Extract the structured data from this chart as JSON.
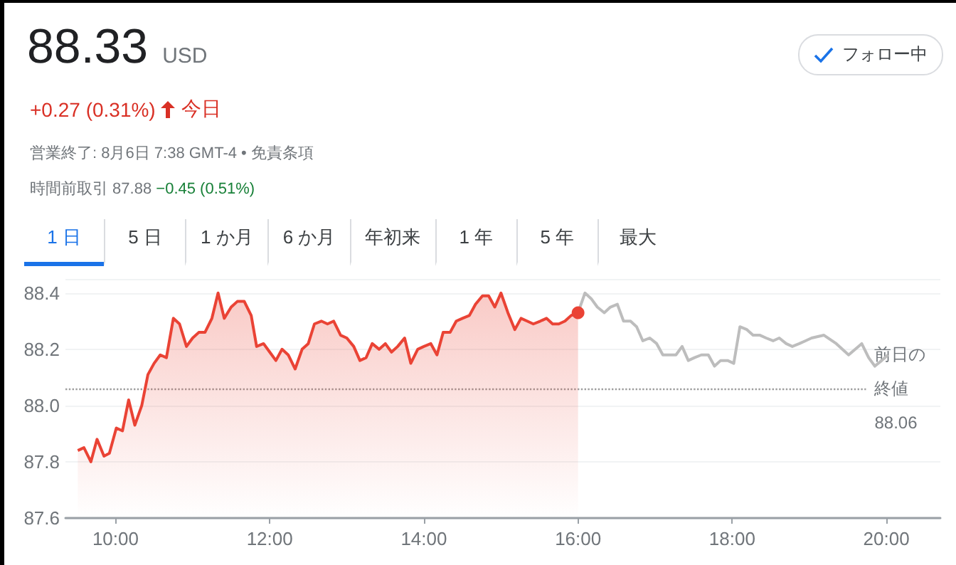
{
  "chart_data": {
    "type": "area",
    "title": "88.33",
    "subtitle": "USD",
    "annotations": [
      "+0.27 (0.31%)",
      "今日",
      "営業終了: 8月6日 7:38 GMT-4 • 免責条項",
      "時間前取引 87.88",
      "−0.45 (0.51%)",
      "フォロー中",
      "1 日",
      "5 日",
      "1 か月",
      "6 か月",
      "年初来",
      "1 年",
      "5 年",
      "最大"
    ],
    "series": [
      {
        "color": "#ea4335",
        "x": [
          9.51,
          9.59,
          9.68,
          9.76,
          9.85,
          9.92,
          10.01,
          10.09,
          10.17,
          10.25,
          10.34,
          10.42,
          10.5,
          10.58,
          10.66,
          10.75,
          10.83,
          10.92,
          11.0,
          11.08,
          11.16,
          11.25,
          11.33,
          11.41,
          11.5,
          11.58,
          11.67,
          11.76,
          11.83,
          11.92,
          12.0,
          12.08,
          12.16,
          12.24,
          12.33,
          12.42,
          12.5,
          12.58,
          12.67,
          12.75,
          12.83,
          12.92,
          13.0,
          13.09,
          13.17,
          13.25,
          13.33,
          13.42,
          13.5,
          13.58,
          13.66,
          13.75,
          13.83,
          13.92,
          14.0,
          14.09,
          14.17,
          14.25,
          14.34,
          14.42,
          14.5,
          14.59,
          14.67,
          14.76,
          14.84,
          14.92,
          15.0,
          15.09,
          15.18,
          15.26,
          15.34,
          15.42,
          15.51,
          15.59,
          15.67,
          15.75,
          15.83,
          15.91,
          16.0
        ],
        "values": [
          87.84,
          87.85,
          87.8,
          87.88,
          87.82,
          87.83,
          87.92,
          87.91,
          88.02,
          87.93,
          88.0,
          88.11,
          88.15,
          88.18,
          88.17,
          88.31,
          88.29,
          88.21,
          88.24,
          88.26,
          88.26,
          88.31,
          88.4,
          88.31,
          88.35,
          88.37,
          88.37,
          88.32,
          88.21,
          88.22,
          88.19,
          88.16,
          88.2,
          88.18,
          88.13,
          88.2,
          88.22,
          88.29,
          88.3,
          88.29,
          88.3,
          88.25,
          88.24,
          88.21,
          88.16,
          88.17,
          88.22,
          88.2,
          88.22,
          88.19,
          88.21,
          88.24,
          88.15,
          88.2,
          88.21,
          88.22,
          88.18,
          88.26,
          88.26,
          88.3,
          88.31,
          88.32,
          88.36,
          88.39,
          88.39,
          88.35,
          88.4,
          88.33,
          88.27,
          88.31,
          88.3,
          88.29,
          88.3,
          88.31,
          88.29,
          88.29,
          88.3,
          88.32,
          88.33
        ]
      },
      {
        "type": "line",
        "color": "#bdbdbd",
        "x": [
          16.0,
          16.09,
          16.17,
          16.25,
          16.34,
          16.42,
          16.51,
          16.59,
          16.68,
          16.76,
          16.84,
          16.93,
          17.02,
          17.1,
          17.18,
          17.27,
          17.35,
          17.43,
          17.51,
          17.6,
          17.69,
          17.77,
          17.85,
          17.94,
          18.02,
          18.1,
          18.19,
          18.27,
          18.36,
          18.44,
          18.53,
          18.61,
          18.7,
          18.78,
          18.87,
          18.95,
          19.03,
          19.19,
          19.35,
          19.51,
          19.68,
          19.77,
          19.85,
          19.94,
          20.02
        ],
        "values": [
          88.33,
          88.4,
          88.38,
          88.35,
          88.33,
          88.35,
          88.36,
          88.3,
          88.3,
          88.28,
          88.23,
          88.24,
          88.22,
          88.18,
          88.18,
          88.18,
          88.21,
          88.16,
          88.17,
          88.18,
          88.18,
          88.14,
          88.16,
          88.16,
          88.15,
          88.28,
          88.27,
          88.25,
          88.25,
          88.24,
          88.23,
          88.24,
          88.22,
          88.21,
          88.22,
          88.23,
          88.24,
          88.25,
          88.22,
          88.18,
          88.22,
          88.17,
          88.14,
          88.16,
          88.18
        ]
      }
    ],
    "xlim": [
      9.35,
      20.7
    ],
    "xticks": [
      {
        "value": 10,
        "label": "10:00"
      },
      {
        "value": 12,
        "label": "12:00"
      },
      {
        "value": 14,
        "label": "14:00"
      },
      {
        "value": 16,
        "label": "16:00"
      },
      {
        "value": 18,
        "label": "18:00"
      },
      {
        "value": 20,
        "label": "20:00"
      }
    ],
    "ylim": [
      87.6,
      88.45
    ],
    "yticks": [
      {
        "value": 87.6,
        "label": "87.6"
      },
      {
        "value": 87.8,
        "label": "87.8"
      },
      {
        "value": 88.0,
        "label": "88.0"
      },
      {
        "value": 88.2,
        "label": "88.2"
      },
      {
        "value": 88.4,
        "label": "88.4"
      }
    ],
    "ref_lines": [
      {
        "axis": "y",
        "value": 88.06,
        "label": "前日の終値 88.06",
        "color": "#9e9e9e",
        "line_style": "dotted"
      }
    ],
    "grid": "y"
  }
}
